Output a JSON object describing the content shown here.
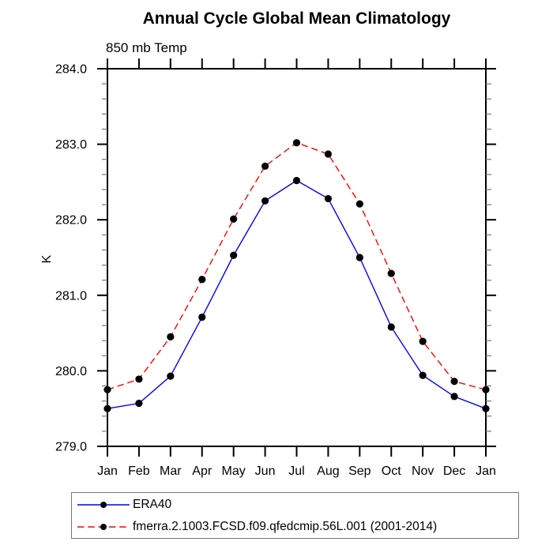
{
  "chart_data": {
    "type": "line",
    "title": "Annual Cycle Global Mean Climatology",
    "subtitle": "850 mb Temp",
    "xlabel": "",
    "ylabel": "K",
    "x_tick_labels": [
      "Jan",
      "Feb",
      "Mar",
      "Apr",
      "May",
      "Jun",
      "Jul",
      "Aug",
      "Sep",
      "Oct",
      "Nov",
      "Dec",
      "Jan"
    ],
    "ylim": [
      279.0,
      284.0
    ],
    "y_major_step": 1.0,
    "y_minor_step": 0.2,
    "y_tick_labels": [
      "279.0",
      "280.0",
      "281.0",
      "282.0",
      "283.0",
      "284.0"
    ],
    "grid": false,
    "legend_position": "bottom-left",
    "frame_color": "#000000",
    "series": [
      {
        "name": "ERA40",
        "color": "#0000ff",
        "line_style": "solid",
        "marker": "filled-circle",
        "marker_color": "#000000",
        "values": [
          279.5,
          279.57,
          279.93,
          280.71,
          281.53,
          282.25,
          282.52,
          282.28,
          281.5,
          280.58,
          279.94,
          279.66,
          279.5
        ]
      },
      {
        "name": "fmerra.2.1003.FCSD.f09.qfedcmip.56L.001 (2001-2014)",
        "color": "#ff0000",
        "line_style": "dashed",
        "marker": "filled-circle",
        "marker_color": "#000000",
        "values": [
          279.75,
          279.89,
          280.45,
          281.21,
          282.01,
          282.71,
          283.02,
          282.87,
          282.21,
          281.29,
          280.39,
          279.86,
          279.75
        ]
      }
    ]
  }
}
